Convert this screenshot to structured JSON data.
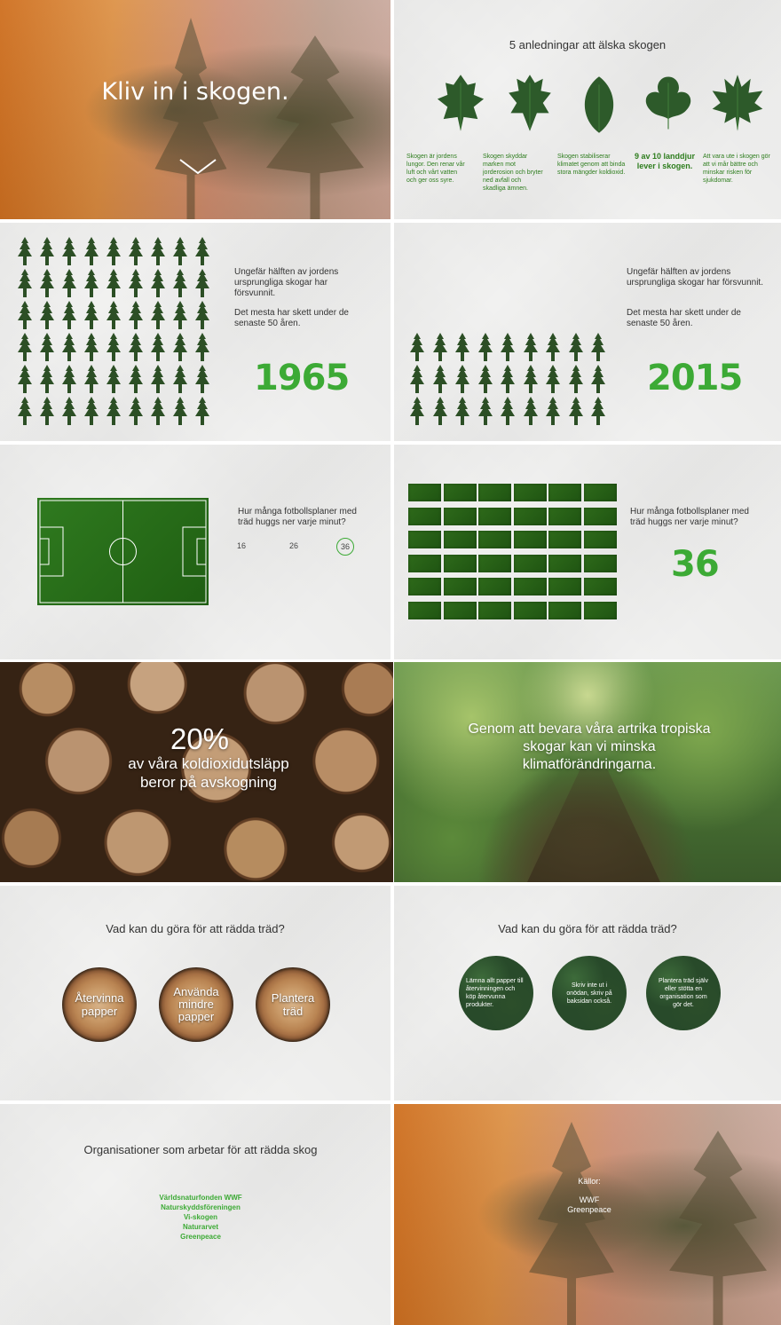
{
  "hero": {
    "title": "Kliv in i skogen."
  },
  "reasons": {
    "title": "5 anledningar att älska skogen",
    "items": [
      {
        "icon": "oak-leaf-icon",
        "text": "Skogen är jordens lungor. Den renar vår luft och vårt vatten och ger oss syre.",
        "bold": false
      },
      {
        "icon": "holly-leaf-icon",
        "text": "Skogen skyddar marken mot jorderosion och bryter ned avfall och skadliga ämnen.",
        "bold": false
      },
      {
        "icon": "simple-leaf-icon",
        "text": "Skogen stabiliserar klimatet genom att binda stora mängder koldioxid.",
        "bold": false
      },
      {
        "icon": "ivy-leaf-icon",
        "text": "9 av 10 landdjur lever i skogen.",
        "bold": true
      },
      {
        "icon": "maple-leaf-icon",
        "text": "Att vara ute i skogen gör att vi mår bättre och minskar risken för sjukdomar.",
        "bold": false
      }
    ]
  },
  "forest_loss": {
    "line1": "Ungefär hälften av jordens ursprungliga skogar har försvunnit.",
    "line2": "Det mesta har skett under de senaste 50 åren.",
    "year_before": "1965",
    "year_after": "2015",
    "trees_before": 54,
    "trees_after": 27
  },
  "football": {
    "question": "Hur många fotbollsplaner med träd huggs ner varje minut?",
    "options": [
      "16",
      "26",
      "36"
    ],
    "selected": "36",
    "answer": "36",
    "fields_count": 36
  },
  "emissions": {
    "percent": "20%",
    "text": "av våra koldioxidutsläpp beror på avskogning"
  },
  "tropical": {
    "text": "Genom att bevara våra artrika tropiska skogar kan vi minska klimatförändringarna."
  },
  "save_trees": {
    "title": "Vad kan du göra för att rädda träd?",
    "actions": [
      "Återvinna papper",
      "Använda mindre papper",
      "Plantera träd"
    ],
    "details": [
      "Lämna allt papper till återvinningen och köp återvunna produkter.",
      "Skriv inte ut i onödan, skriv på baksidan också.",
      "Plantera träd själv eller stötta en organisation som gör det."
    ]
  },
  "organisations": {
    "title": "Organisationer som arbetar för att rädda skog",
    "items": [
      "Världsnaturfonden WWF",
      "Naturskyddsföreningen",
      "Vi-skogen",
      "Naturarvet",
      "Greenpeace"
    ]
  },
  "sources": {
    "label": "Källor:",
    "items": [
      "WWF",
      "Greenpeace"
    ]
  },
  "colors": {
    "accent_green": "#3caa35",
    "dark_green": "#2e7d1e",
    "orange": "#c9630d"
  }
}
